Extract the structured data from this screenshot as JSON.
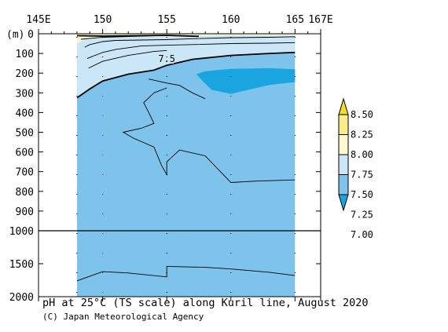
{
  "chart_data": {
    "type": "contour",
    "title": "pH at 25°C (TS scale) along Kuril line, August 2020",
    "credit": "(C) Japan Meteorological Agency",
    "x_axis": {
      "ticks": [
        145,
        150,
        155,
        160,
        165,
        167
      ],
      "tick_labels": [
        "145E",
        "150",
        "155",
        "160",
        "165",
        "167E"
      ],
      "range": [
        145,
        167
      ]
    },
    "y_axis": {
      "unit_label": "(m)",
      "upper_ticks": [
        0,
        100,
        200,
        300,
        400,
        500,
        600,
        700,
        800,
        900,
        1000
      ],
      "lower_ticks": [
        1500,
        2000
      ],
      "upper_range": [
        0,
        1000
      ],
      "lower_range": [
        1000,
        2000
      ],
      "reversed": true
    },
    "data_extent": {
      "lon_min": 148,
      "lon_max": 165,
      "depth_max": 2000
    },
    "stations_lon": [
      148,
      150,
      155,
      160,
      165
    ],
    "contour_label": "7.5",
    "colorbar": {
      "levels": [
        "8.50",
        "8.25",
        "8.00",
        "7.75",
        "7.50",
        "7.25",
        "7.00"
      ],
      "colors": [
        "#f4dc2a",
        "#f8ed8a",
        "#fdf8d2",
        "#cbe6f7",
        "#7ec3ec",
        "#1aa5e0"
      ]
    },
    "colors": {
      "above_7_75": "#fdf8d2",
      "between_7_5_7_75": "#cbe6f7",
      "between_7_25_7_5": "#7ec3ec",
      "below_7_25": "#1aa5e0"
    }
  }
}
